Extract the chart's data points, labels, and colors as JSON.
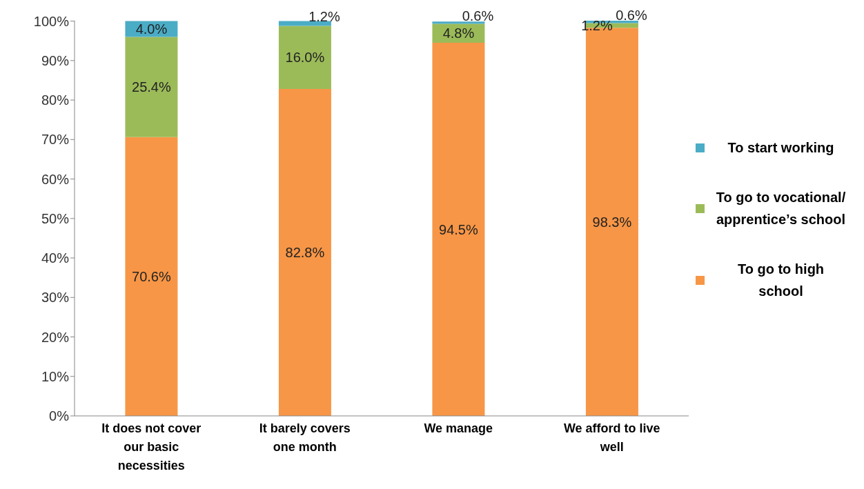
{
  "chart_data": {
    "type": "bar",
    "stacked": true,
    "categories": [
      "It does not cover our basic necessities",
      "It barely covers one month",
      "We manage",
      "We afford to live well"
    ],
    "series": [
      {
        "name": "To go to high school",
        "color": "#f79646",
        "values": [
          70.6,
          82.8,
          94.5,
          98.3
        ],
        "value_labels": [
          "70.6%",
          "82.8%",
          "94.5%",
          "98.3%"
        ]
      },
      {
        "name": "To go to vocational/ apprentice’s school",
        "color": "#9bbb59",
        "values": [
          25.4,
          16.0,
          4.8,
          1.2
        ],
        "value_labels": [
          "25.4%",
          "16.0%",
          "4.8%",
          "1.2%"
        ]
      },
      {
        "name": "To start working",
        "color": "#4bacc6",
        "values": [
          4.0,
          1.2,
          0.6,
          0.6
        ],
        "value_labels": [
          "4.0%",
          "1.2%",
          "0.6%",
          "0.6%"
        ]
      }
    ],
    "ylim": [
      0,
      100.1
    ],
    "yticks": [
      {
        "value": 0,
        "label": "0%"
      },
      {
        "value": 10,
        "label": "10%"
      },
      {
        "value": 20,
        "label": "20%"
      },
      {
        "value": 30,
        "label": "30%"
      },
      {
        "value": 40,
        "label": "40%"
      },
      {
        "value": 50,
        "label": "50%"
      },
      {
        "value": 60,
        "label": "60%"
      },
      {
        "value": 70,
        "label": "70%"
      },
      {
        "value": 80,
        "label": "80%"
      },
      {
        "value": 90,
        "label": "90%"
      },
      {
        "value": 100,
        "label": "100%"
      }
    ],
    "legend": "right",
    "grid": false
  }
}
